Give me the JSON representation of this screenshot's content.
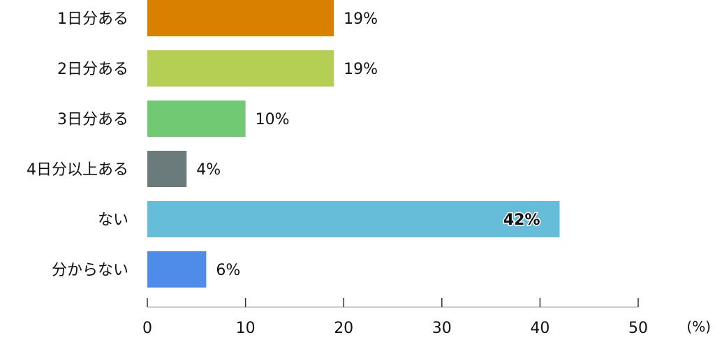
{
  "chart_data": {
    "type": "bar",
    "orientation": "horizontal",
    "categories": [
      "1日分ある",
      "2日分ある",
      "3日分ある",
      "4日分以上ある",
      "ない",
      "分からない"
    ],
    "values": [
      19,
      19,
      10,
      4,
      42,
      6
    ],
    "value_labels": [
      "19%",
      "19%",
      "10%",
      "4%",
      "42%",
      "6%"
    ],
    "colors": [
      "#d98000",
      "#b5cf55",
      "#72c973",
      "#6b7b7b",
      "#66bdd9",
      "#4f8be8"
    ],
    "xlim": [
      0,
      50
    ],
    "xticks": [
      0,
      10,
      20,
      30,
      40,
      50
    ],
    "unit": "(%)",
    "title": "",
    "xlabel": "",
    "ylabel": "",
    "grid": false,
    "legend": "none"
  }
}
